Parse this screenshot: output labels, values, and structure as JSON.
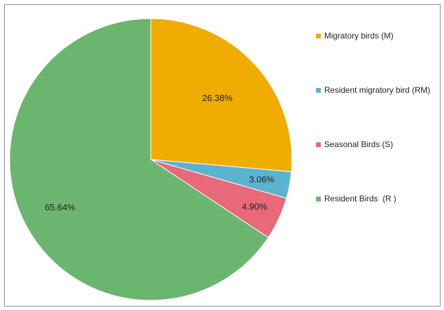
{
  "chart_data": {
    "type": "pie",
    "title": "",
    "categories": [
      "Migratory birds (M)",
      "Resident migratory bird (RM)",
      "Seasonal Birds (S)",
      "Resident Birds  (R )"
    ],
    "values": [
      26.38,
      3.06,
      4.9,
      65.64
    ],
    "value_labels": [
      "26.38%",
      "3.06%",
      "4.90%",
      "65.64%"
    ],
    "colors": [
      "#f0ad00",
      "#5ab4cf",
      "#e8697a",
      "#6bb66e"
    ],
    "start_angle": "12 o'clock, clockwise",
    "legend_position": "right"
  }
}
